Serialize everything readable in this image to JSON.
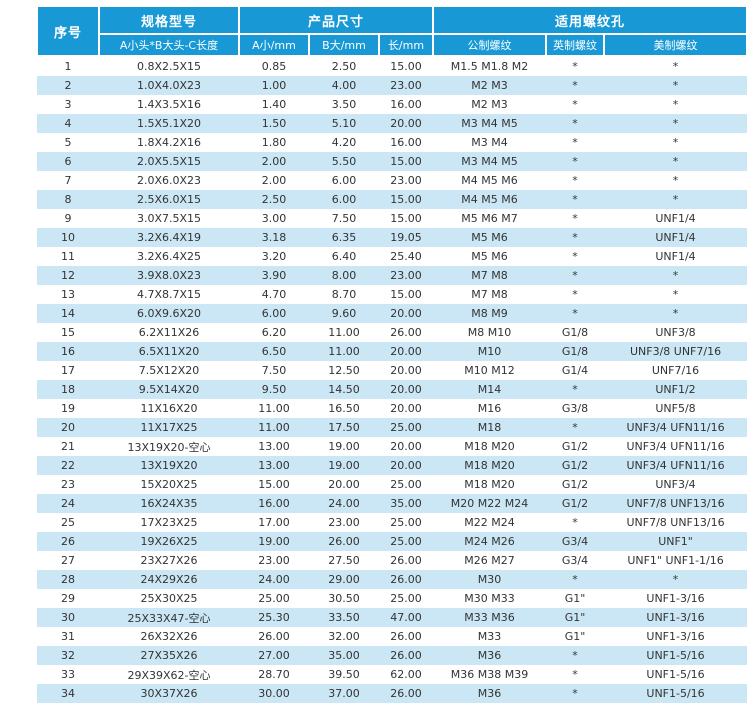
{
  "colors": {
    "header_bg": "#1899d5",
    "row_alt": "#cbe7f5",
    "header_text": "#ffffff",
    "body_text": "#333333"
  },
  "chart_data": {
    "type": "table",
    "title": "",
    "header_groups": [
      {
        "label": "序号",
        "colspan": 1,
        "rowspan": 2
      },
      {
        "label": "规格型号",
        "colspan": 1,
        "rowspan": 1
      },
      {
        "label": "产品尺寸",
        "colspan": 3,
        "rowspan": 1
      },
      {
        "label": "适用螺纹孔",
        "colspan": 3,
        "rowspan": 1
      }
    ],
    "sub_headers": [
      "A小头*B大头-C长度",
      "A小/mm",
      "B大/mm",
      "长/mm",
      "公制螺纹",
      "英制螺纹",
      "美制螺纹"
    ],
    "col_keys": [
      "serial",
      "spec",
      "a_small_mm",
      "b_big_mm",
      "length_mm",
      "metric_thread",
      "imperial_thread",
      "us_thread"
    ],
    "rows": [
      [
        "1",
        "0.8X2.5X15",
        "0.85",
        "2.50",
        "15.00",
        "M1.5 M1.8 M2",
        "*",
        "*"
      ],
      [
        "2",
        "1.0X4.0X23",
        "1.00",
        "4.00",
        "23.00",
        "M2 M3",
        "*",
        "*"
      ],
      [
        "3",
        "1.4X3.5X16",
        "1.40",
        "3.50",
        "16.00",
        "M2 M3",
        "*",
        "*"
      ],
      [
        "4",
        "1.5X5.1X20",
        "1.50",
        "5.10",
        "20.00",
        "M3 M4 M5",
        "*",
        "*"
      ],
      [
        "5",
        "1.8X4.2X16",
        "1.80",
        "4.20",
        "16.00",
        "M3 M4",
        "*",
        "*"
      ],
      [
        "6",
        "2.0X5.5X15",
        "2.00",
        "5.50",
        "15.00",
        "M3 M4 M5",
        "*",
        "*"
      ],
      [
        "7",
        "2.0X6.0X23",
        "2.00",
        "6.00",
        "23.00",
        "M4 M5 M6",
        "*",
        "*"
      ],
      [
        "8",
        "2.5X6.0X15",
        "2.50",
        "6.00",
        "15.00",
        "M4 M5 M6",
        "*",
        "*"
      ],
      [
        "9",
        "3.0X7.5X15",
        "3.00",
        "7.50",
        "15.00",
        "M5 M6 M7",
        "*",
        "UNF1/4"
      ],
      [
        "10",
        "3.2X6.4X19",
        "3.18",
        "6.35",
        "19.05",
        "M5 M6",
        "*",
        "UNF1/4"
      ],
      [
        "11",
        "3.2X6.4X25",
        "3.20",
        "6.40",
        "25.40",
        "M5 M6",
        "*",
        "UNF1/4"
      ],
      [
        "12",
        "3.9X8.0X23",
        "3.90",
        "8.00",
        "23.00",
        "M7 M8",
        "*",
        "*"
      ],
      [
        "13",
        "4.7X8.7X15",
        "4.70",
        "8.70",
        "15.00",
        "M7 M8",
        "*",
        "*"
      ],
      [
        "14",
        "6.0X9.6X20",
        "6.00",
        "9.60",
        "20.00",
        "M8 M9",
        "*",
        "*"
      ],
      [
        "15",
        "6.2X11X26",
        "6.20",
        "11.00",
        "26.00",
        "M8 M10",
        "G1/8",
        "UNF3/8"
      ],
      [
        "16",
        "6.5X11X20",
        "6.50",
        "11.00",
        "20.00",
        "M10",
        "G1/8",
        "UNF3/8 UNF7/16"
      ],
      [
        "17",
        "7.5X12X20",
        "7.50",
        "12.50",
        "20.00",
        "M10 M12",
        "G1/4",
        "UNF7/16"
      ],
      [
        "18",
        "9.5X14X20",
        "9.50",
        "14.50",
        "20.00",
        "M14",
        "*",
        "UNF1/2"
      ],
      [
        "19",
        "11X16X20",
        "11.00",
        "16.50",
        "20.00",
        "M16",
        "G3/8",
        "UNF5/8"
      ],
      [
        "20",
        "11X17X25",
        "11.00",
        "17.50",
        "25.00",
        "M18",
        "*",
        "UNF3/4 UFN11/16"
      ],
      [
        "21",
        "13X19X20-空心",
        "13.00",
        "19.00",
        "20.00",
        "M18 M20",
        "G1/2",
        "UNF3/4 UFN11/16"
      ],
      [
        "22",
        "13X19X20",
        "13.00",
        "19.00",
        "20.00",
        "M18 M20",
        "G1/2",
        "UNF3/4 UFN11/16"
      ],
      [
        "23",
        "15X20X25",
        "15.00",
        "20.00",
        "25.00",
        "M18 M20",
        "G1/2",
        "UNF3/4"
      ],
      [
        "24",
        "16X24X35",
        "16.00",
        "24.00",
        "35.00",
        "M20 M22 M24",
        "G1/2",
        "UNF7/8 UNF13/16"
      ],
      [
        "25",
        "17X23X25",
        "17.00",
        "23.00",
        "25.00",
        "M22 M24",
        "*",
        "UNF7/8 UNF13/16"
      ],
      [
        "26",
        "19X26X25",
        "19.00",
        "26.00",
        "25.00",
        "M24 M26",
        "G3/4",
        "UNF1\""
      ],
      [
        "27",
        "23X27X26",
        "23.00",
        "27.50",
        "26.00",
        "M26 M27",
        "G3/4",
        "UNF1\" UNF1-1/16"
      ],
      [
        "28",
        "24X29X26",
        "24.00",
        "29.00",
        "26.00",
        "M30",
        "*",
        "*"
      ],
      [
        "29",
        "25X30X25",
        "25.00",
        "30.50",
        "25.00",
        "M30 M33",
        "G1\"",
        "UNF1-3/16"
      ],
      [
        "30",
        "25X33X47-空心",
        "25.30",
        "33.50",
        "47.00",
        "M33 M36",
        "G1\"",
        "UNF1-3/16"
      ],
      [
        "31",
        "26X32X26",
        "26.00",
        "32.00",
        "26.00",
        "M33",
        "G1\"",
        "UNF1-3/16"
      ],
      [
        "32",
        "27X35X26",
        "27.00",
        "35.00",
        "26.00",
        "M36",
        "*",
        "UNF1-5/16"
      ],
      [
        "33",
        "29X39X62-空心",
        "28.70",
        "39.50",
        "62.00",
        "M36 M38 M39",
        "*",
        "UNF1-5/16"
      ],
      [
        "34",
        "30X37X26",
        "30.00",
        "37.00",
        "26.00",
        "M36",
        "*",
        "UNF1-5/16"
      ]
    ]
  }
}
